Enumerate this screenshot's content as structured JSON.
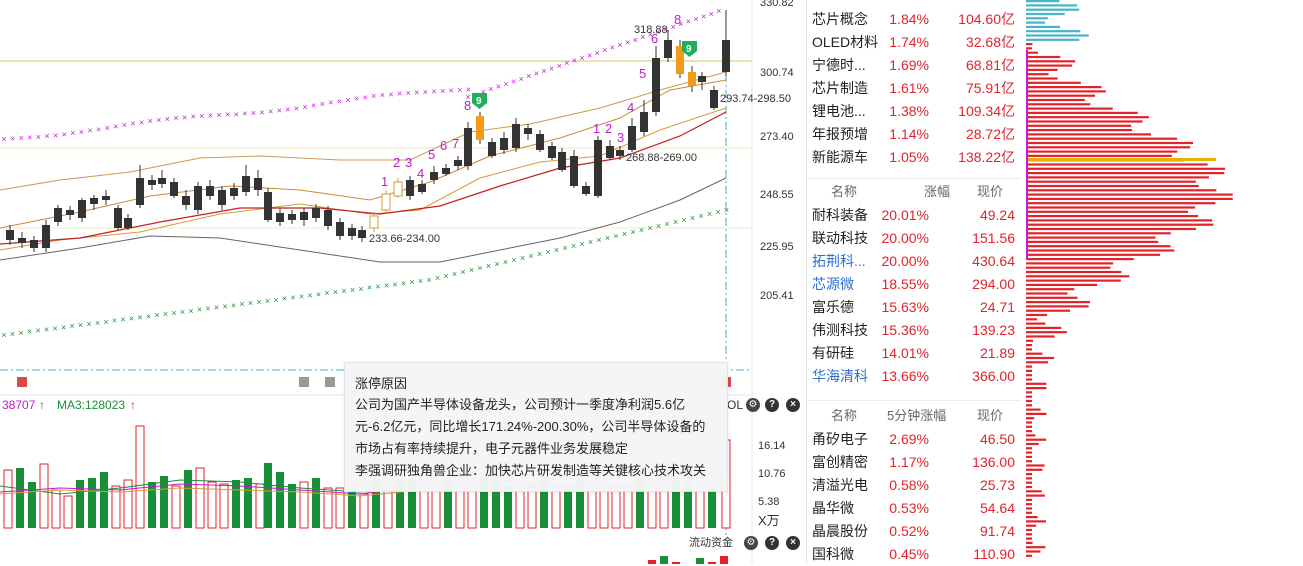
{
  "price_axis": [
    "330.82",
    "300.74",
    "273.40",
    "248.55",
    "225.95",
    "205.41"
  ],
  "volume_axis": [
    "16.14",
    "10.76",
    "5.38",
    "X万"
  ],
  "annotations": {
    "high_label": "318.88",
    "current_range": "293.74-298.50",
    "mid_range": "268.88-269.00",
    "low_label": "233.66-234.00",
    "seq1": [
      "1",
      "2",
      "3",
      "4",
      "5",
      "6",
      "7",
      "8"
    ],
    "seq2": [
      "1",
      "2",
      "3",
      "4",
      "5",
      "6",
      "8"
    ],
    "nine_badge": "9"
  },
  "volume_indicator": {
    "ma_prefix": "38707",
    "ma3_label": "MA3:128023",
    "arrow": "↑",
    "vol_tag": "OL",
    "funds_label": "流动资金"
  },
  "tooltip": {
    "title": "涨停原因",
    "body": "公司为国产半导体设备龙头，公司预计一季度净利润5.6亿元-6.2亿元，同比增长171.24%-200.30%，公司半导体设备的市场占有率持续提升，电子元器件业务发展稳定",
    "body2": "李强调研独角兽企业：加快芯片研发制造等关键核心技术攻关"
  },
  "sectors": [
    {
      "name": "芯片概念",
      "pct": "1.84%",
      "amt": "104.60亿"
    },
    {
      "name": "OLED材料",
      "pct": "1.74%",
      "amt": "32.68亿"
    },
    {
      "name": "宁德时...",
      "pct": "1.69%",
      "amt": "68.81亿"
    },
    {
      "name": "芯片制造",
      "pct": "1.61%",
      "amt": "75.91亿"
    },
    {
      "name": "锂电池...",
      "pct": "1.38%",
      "amt": "109.34亿"
    },
    {
      "name": "年报预增",
      "pct": "1.14%",
      "amt": "28.72亿"
    },
    {
      "name": "新能源车",
      "pct": "1.05%",
      "amt": "138.22亿"
    }
  ],
  "gainers_header": {
    "name": "名称",
    "chg": "涨幅",
    "price": "现价"
  },
  "gainers": [
    {
      "name": "耐科装备",
      "chg": "20.01%",
      "price": "49.24",
      "blue": false
    },
    {
      "name": "联动科技",
      "chg": "20.00%",
      "price": "151.56",
      "blue": false
    },
    {
      "name": "拓荆科...",
      "chg": "20.00%",
      "price": "430.64",
      "blue": true
    },
    {
      "name": "芯源微",
      "chg": "18.55%",
      "price": "294.00",
      "blue": true
    },
    {
      "name": "富乐德",
      "chg": "15.63%",
      "price": "24.71",
      "blue": false
    },
    {
      "name": "伟测科技",
      "chg": "15.36%",
      "price": "139.23",
      "blue": false
    },
    {
      "name": "有研硅",
      "chg": "14.01%",
      "price": "21.89",
      "blue": false
    },
    {
      "name": "华海清科",
      "chg": "13.66%",
      "price": "366.00",
      "blue": true
    }
  ],
  "speed_header": {
    "name": "名称",
    "chg": "5分钟涨幅",
    "price": "现价"
  },
  "speed": [
    {
      "name": "甬矽电子",
      "chg": "2.69%",
      "price": "46.50"
    },
    {
      "name": "富创精密",
      "chg": "1.17%",
      "price": "136.00"
    },
    {
      "name": "清溢光电",
      "chg": "0.58%",
      "price": "25.73"
    },
    {
      "name": "晶华微",
      "chg": "0.53%",
      "price": "54.64"
    },
    {
      "name": "晶晨股份",
      "chg": "0.52%",
      "price": "91.74"
    },
    {
      "name": "国科微",
      "chg": "0.45%",
      "price": "110.90"
    }
  ],
  "colors": {
    "up": "#e2232a",
    "down": "#1a8f3a",
    "sar_up": "#c21bd1",
    "sar_down": "#1a8f3a",
    "axis_text": "#333",
    "highlight": "#e5b100"
  },
  "icons": [
    "gear-icon",
    "help-icon",
    "close-icon"
  ]
}
